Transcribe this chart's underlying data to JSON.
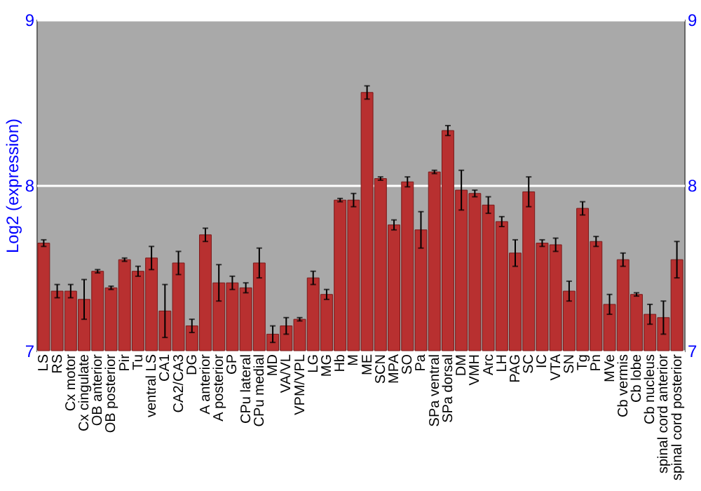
{
  "chart_data": {
    "type": "bar",
    "ylabel": "Log2 (expression)",
    "categories": [
      "LS",
      "RS",
      "Cx motor",
      "Cx cingulate",
      "OB anterior",
      "OB posterior",
      "Pir",
      "Tu",
      "ventral LS",
      "CA1",
      "CA2/CA3",
      "DG",
      "A anterior",
      "A posterior",
      "GP",
      "CPu lateral",
      "CPu medial",
      "MD",
      "VA/VL",
      "VPM/VPL",
      "LG",
      "MG",
      "Hb",
      "M",
      "ME",
      "SCN",
      "MPA",
      "SO",
      "Pa",
      "SPa ventral",
      "SPa dorsal",
      "DM",
      "VMH",
      "Arc",
      "LH",
      "PAG",
      "SC",
      "IC",
      "VTA",
      "SN",
      "Tg",
      "Pn",
      "MVe",
      "Cb vermis",
      "Cb lobe",
      "Cb nucleus",
      "spinal cord anterior",
      "spinal cord posterior"
    ],
    "values": [
      7.65,
      7.36,
      7.36,
      7.31,
      7.48,
      7.38,
      7.55,
      7.48,
      7.56,
      7.24,
      7.53,
      7.15,
      7.7,
      7.41,
      7.41,
      7.38,
      7.53,
      7.1,
      7.15,
      7.19,
      7.44,
      7.34,
      7.91,
      7.91,
      8.56,
      8.04,
      7.76,
      8.02,
      7.73,
      8.08,
      8.33,
      7.97,
      7.95,
      7.88,
      7.78,
      7.59,
      7.96,
      7.65,
      7.64,
      7.36,
      7.86,
      7.66,
      7.28,
      7.55,
      7.34,
      7.22,
      7.2,
      7.55
    ],
    "errors": [
      0.02,
      0.04,
      0.04,
      0.12,
      0.01,
      0.01,
      0.01,
      0.03,
      0.07,
      0.16,
      0.07,
      0.04,
      0.04,
      0.11,
      0.04,
      0.03,
      0.09,
      0.05,
      0.05,
      0.01,
      0.04,
      0.03,
      0.01,
      0.04,
      0.04,
      0.01,
      0.03,
      0.03,
      0.11,
      0.01,
      0.03,
      0.12,
      0.02,
      0.05,
      0.03,
      0.08,
      0.09,
      0.02,
      0.04,
      0.06,
      0.04,
      0.03,
      0.06,
      0.04,
      0.01,
      0.06,
      0.1,
      0.11
    ],
    "color": "#b83030",
    "ylim": [
      7,
      9
    ],
    "yticks": [
      7,
      8,
      9
    ],
    "y2lim": [
      7,
      9
    ],
    "y2ticks": [
      7,
      8,
      9
    ],
    "grid": "y"
  }
}
